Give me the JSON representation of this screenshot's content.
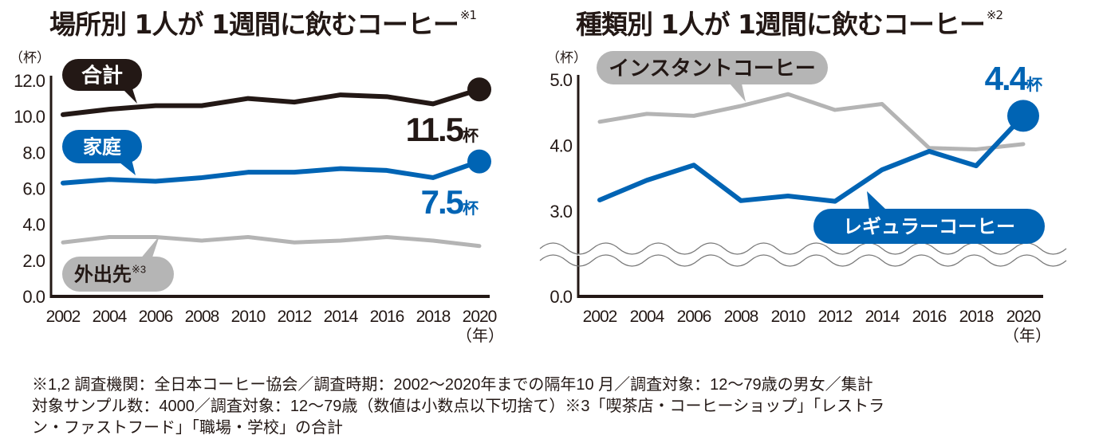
{
  "colors": {
    "black": "#231815",
    "blue": "#0064b4",
    "gray": "#b4b4b4",
    "gray_bubble": "#b5b5b5",
    "text": "#231815"
  },
  "chart_data": [
    {
      "type": "line",
      "title": "場所別 1人が 1週間に飲むコーヒー",
      "title_note": "※1",
      "ylabel": "（杯）",
      "xlabel": "（年）",
      "ylim": [
        0,
        12
      ],
      "yticks": [
        "0.0",
        "2.0",
        "4.0",
        "6.0",
        "8.0",
        "10.0",
        "12.0"
      ],
      "ytick_values": [
        0,
        2,
        4,
        6,
        8,
        10,
        12
      ],
      "x": [
        2002,
        2004,
        2006,
        2008,
        2010,
        2012,
        2014,
        2016,
        2018,
        2020
      ],
      "xticks": [
        "2002",
        "2004",
        "2006",
        "2008",
        "2010",
        "2012",
        "2014",
        "2016",
        "2018",
        "2020"
      ],
      "grid": false,
      "axis_break": false,
      "series": [
        {
          "name": "合計",
          "note": "",
          "color_key": "black",
          "label_style": "bubble-dark",
          "values": [
            10.1,
            10.4,
            10.6,
            10.6,
            11.0,
            10.8,
            11.2,
            11.1,
            10.7,
            11.5
          ],
          "end_label": "11.5",
          "end_unit": "杯"
        },
        {
          "name": "家庭",
          "note": "",
          "color_key": "blue",
          "label_style": "bubble-blue",
          "values": [
            6.3,
            6.5,
            6.4,
            6.6,
            6.9,
            6.9,
            7.1,
            7.0,
            6.6,
            7.5
          ],
          "end_label": "7.5",
          "end_unit": "杯"
        },
        {
          "name": "外出先",
          "note": "※3",
          "color_key": "gray",
          "label_style": "bubble-gray",
          "values": [
            3.0,
            3.3,
            3.3,
            3.1,
            3.3,
            3.0,
            3.1,
            3.3,
            3.1,
            2.8
          ],
          "end_label": "",
          "end_unit": ""
        }
      ]
    },
    {
      "type": "line",
      "title": "種類別 1人が 1週間に飲むコーヒー",
      "title_note": "※2",
      "ylabel": "（杯）",
      "xlabel": "（年）",
      "ylim": [
        0,
        5
      ],
      "yticks": [
        "0.0",
        "3.0",
        "4.0",
        "5.0"
      ],
      "ytick_values": [
        0,
        3,
        4,
        5
      ],
      "x": [
        2002,
        2004,
        2006,
        2008,
        2010,
        2012,
        2014,
        2016,
        2018,
        2020
      ],
      "xticks": [
        "2002",
        "2004",
        "2006",
        "2008",
        "2010",
        "2012",
        "2014",
        "2016",
        "2018",
        "2020"
      ],
      "grid": false,
      "axis_break": true,
      "axis_break_range": [
        0,
        3
      ],
      "series": [
        {
          "name": "インスタントコーヒー",
          "note": "",
          "color_key": "gray",
          "label_style": "bubble-gray",
          "values": [
            4.36,
            4.48,
            4.45,
            4.6,
            4.78,
            4.54,
            4.63,
            3.96,
            3.94,
            4.02
          ],
          "end_label": "",
          "end_unit": ""
        },
        {
          "name": "レギュラーコーヒー",
          "note": "",
          "color_key": "blue",
          "label_style": "bubble-blue",
          "values": [
            3.17,
            3.47,
            3.7,
            3.16,
            3.23,
            3.15,
            3.63,
            3.91,
            3.69,
            4.45
          ],
          "end_label": "4.4",
          "end_unit": "杯"
        }
      ]
    }
  ],
  "notes": [
    "※1,2 調査機関：全日本コーヒー協会／調査時期：2002〜2020年までの隔年10 月／調査対象：12〜79歳の男女／集計",
    "対象サンプル数：4000／調査対象：12〜79歳（数値は小数点以下切捨て）※3「喫茶店・コーヒーショップ」「レストラ",
    "ン・ファストフード」「職場・学校」の合計"
  ]
}
